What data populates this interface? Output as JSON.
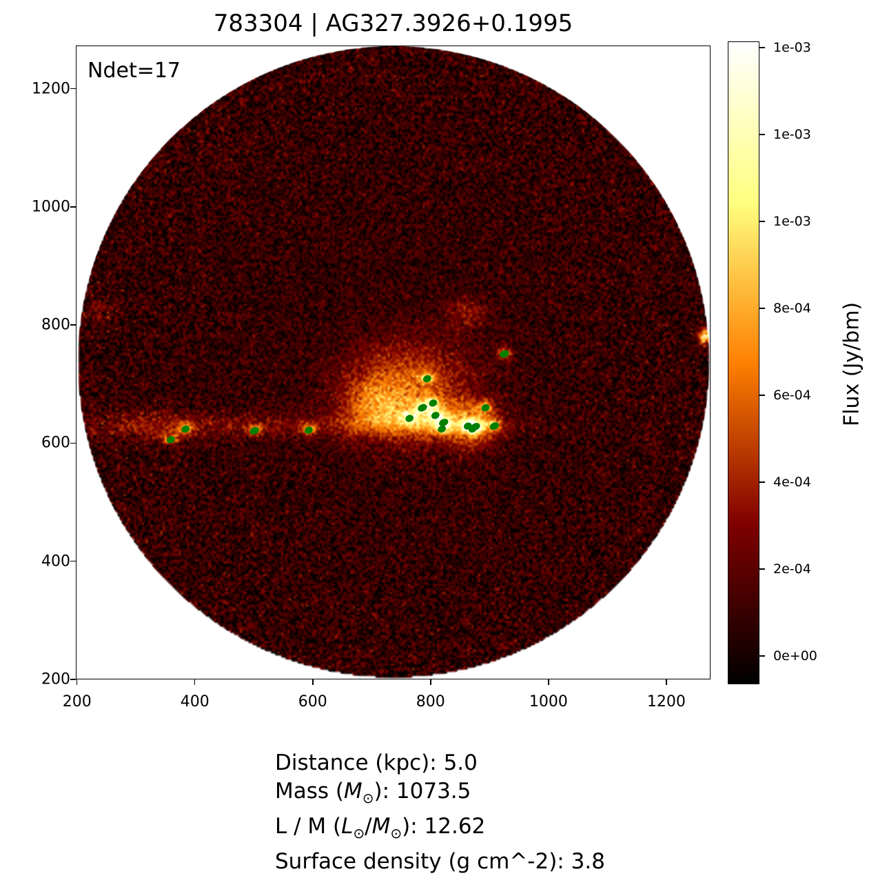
{
  "title": "783304 | AG327.3926+0.1995",
  "annotation": "Ndet=17",
  "chart_data": {
    "type": "heatmap",
    "title": "783304 | AG327.3926+0.1995",
    "xlim": [
      198,
      1275
    ],
    "ylim": [
      200,
      1273
    ],
    "x_ticks": [
      "200",
      "400",
      "600",
      "800",
      "1000",
      "1200"
    ],
    "y_ticks": [
      "200",
      "400",
      "600",
      "800",
      "1000",
      "1200"
    ],
    "grid": false,
    "colormap": "afmhot",
    "colorbar": {
      "label": "Flux (Jy/bm)",
      "range": [
        -6.5e-05,
        0.001414
      ],
      "tick_values": [
        0,
        0.0002,
        0.0004,
        0.0006,
        0.0008,
        0.001,
        0.0012,
        0.0014
      ],
      "tick_labels": [
        "0e+00",
        "2e-04",
        "4e-04",
        "6e-04",
        "8e-04",
        "1e-03",
        "1e-03",
        "1e-03"
      ]
    },
    "field_of_view": {
      "shape": "circle",
      "center": [
        736,
        738
      ],
      "radius": 536
    },
    "detection_color": "#008000",
    "detections": [
      {
        "x": 924,
        "y": 752
      },
      {
        "x": 793,
        "y": 710
      },
      {
        "x": 803,
        "y": 669
      },
      {
        "x": 785,
        "y": 661
      },
      {
        "x": 763,
        "y": 643
      },
      {
        "x": 807,
        "y": 648
      },
      {
        "x": 821,
        "y": 636
      },
      {
        "x": 818,
        "y": 625
      },
      {
        "x": 862,
        "y": 630
      },
      {
        "x": 875,
        "y": 629
      },
      {
        "x": 870,
        "y": 625
      },
      {
        "x": 892,
        "y": 661
      },
      {
        "x": 907,
        "y": 630
      },
      {
        "x": 358,
        "y": 607
      },
      {
        "x": 383,
        "y": 625
      },
      {
        "x": 500,
        "y": 622
      },
      {
        "x": 592,
        "y": 623
      }
    ]
  },
  "stats": {
    "distance": "Distance (kpc): 5.0",
    "mass_prefix": "Mass (",
    "mass_sym": "M",
    "sun": "⊙",
    "mass_suffix": "): 1073.5",
    "lm_prefix": "L / M (",
    "lm_L": "L",
    "lm_slash": "/",
    "lm_M": "M",
    "lm_suffix": "): 12.62",
    "surface": "Surface density (g cm^-2): 3.8"
  }
}
